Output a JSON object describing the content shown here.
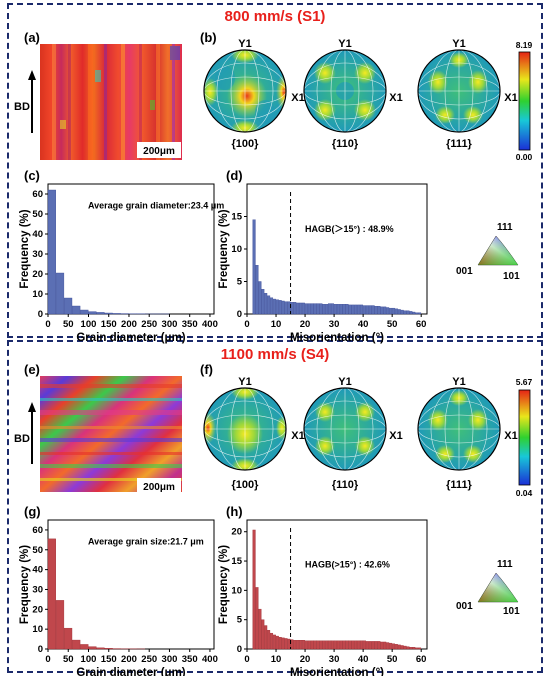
{
  "panels": [
    {
      "title": "800 mm/s (S1)",
      "ebsd_labels": {
        "panel": "(a)",
        "axis": "BD",
        "scale": "200μm"
      },
      "pole_figures": {
        "panel": "(b)",
        "y_label": "Y1",
        "x_label": "X1",
        "planes": [
          "{100}",
          "{110}",
          "{111}"
        ],
        "colorbar": {
          "max": "8.19",
          "min": "0.00"
        }
      },
      "triangle": {
        "top": "111",
        "left": "001",
        "right": "101"
      }
    },
    {
      "title": "1100 mm/s (S4)",
      "ebsd_labels": {
        "panel": "(e)",
        "axis": "BD",
        "scale": "200μm"
      },
      "pole_figures": {
        "panel": "(f)",
        "y_label": "Y1",
        "x_label": "X1",
        "planes": [
          "{100}",
          "{110}",
          "{111}"
        ],
        "colorbar": {
          "max": "5.67",
          "min": "0.04"
        }
      },
      "triangle": {
        "top": "111",
        "left": "001",
        "right": "101"
      }
    }
  ],
  "chart_data": [
    {
      "panel": "(c)",
      "type": "bar",
      "color": "#5b6fb4",
      "xlabel": "Grain diameter (μm)",
      "ylabel": "Frequency (%)",
      "annotation": "Average grain diameter:23.4 μm",
      "xlim": [
        0,
        410
      ],
      "ylim": [
        0,
        65
      ],
      "xticks": [
        0,
        50,
        100,
        150,
        200,
        250,
        300,
        350,
        400
      ],
      "yticks": [
        0,
        10,
        20,
        30,
        40,
        50,
        60
      ],
      "bin_width": 20,
      "x": [
        10,
        30,
        50,
        70,
        90,
        110,
        130,
        150,
        170,
        190,
        210,
        230,
        250,
        270,
        290
      ],
      "values": [
        62,
        20.5,
        8,
        4,
        2,
        1.2,
        0.8,
        0.5,
        0.3,
        0.2,
        0.1,
        0.1,
        0.05,
        0.05,
        0.05
      ]
    },
    {
      "panel": "(d)",
      "type": "bar",
      "color": "#5b6fb4",
      "xlabel": "Misorientation (°)",
      "ylabel": "Frequency (%)",
      "annotation": "HAGB(＞15°) : 48.9%",
      "xlim": [
        0,
        62
      ],
      "ylim": [
        0,
        20
      ],
      "xticks": [
        0,
        10,
        20,
        30,
        40,
        50,
        60
      ],
      "yticks": [
        0,
        5,
        10,
        15
      ],
      "threshold": 15,
      "bin_width": 1,
      "x": [
        2.5,
        3.5,
        4.5,
        5.5,
        6.5,
        7.5,
        8.5,
        9.5,
        10.5,
        11.5,
        12.5,
        13.5,
        14.5,
        15.5,
        16.5,
        17.5,
        18.5,
        19.5,
        20.5,
        21.5,
        22.5,
        23.5,
        24.5,
        25.5,
        26.5,
        27.5,
        28.5,
        29.5,
        30.5,
        31.5,
        32.5,
        33.5,
        34.5,
        35.5,
        36.5,
        37.5,
        38.5,
        39.5,
        40.5,
        41.5,
        42.5,
        43.5,
        44.5,
        45.5,
        46.5,
        47.5,
        48.5,
        49.5,
        50.5,
        51.5,
        52.5,
        53.5,
        54.5,
        55.5,
        56.5,
        57.5,
        58.5,
        59.5
      ],
      "values": [
        14.5,
        7.5,
        5.0,
        3.8,
        3.2,
        2.8,
        2.5,
        2.3,
        2.2,
        2.1,
        2.0,
        1.9,
        1.9,
        1.8,
        1.8,
        1.7,
        1.7,
        1.7,
        1.6,
        1.6,
        1.6,
        1.6,
        1.6,
        1.6,
        1.5,
        1.5,
        1.6,
        1.6,
        1.5,
        1.5,
        1.5,
        1.5,
        1.5,
        1.4,
        1.4,
        1.4,
        1.4,
        1.4,
        1.3,
        1.3,
        1.3,
        1.3,
        1.2,
        1.2,
        1.1,
        1.1,
        1.0,
        0.9,
        0.9,
        0.8,
        0.7,
        0.6,
        0.5,
        0.5,
        0.4,
        0.3,
        0.2,
        0.2
      ]
    },
    {
      "panel": "(g)",
      "type": "bar",
      "color": "#c0474c",
      "xlabel": "Grain diameter (μm)",
      "ylabel": "Frequency (%)",
      "annotation": "Average grain size:21.7 μm",
      "xlim": [
        0,
        410
      ],
      "ylim": [
        0,
        65
      ],
      "xticks": [
        0,
        50,
        100,
        150,
        200,
        250,
        300,
        350,
        400
      ],
      "yticks": [
        0,
        10,
        20,
        30,
        40,
        50,
        60
      ],
      "bin_width": 20,
      "x": [
        10,
        30,
        50,
        70,
        90,
        110,
        130,
        150,
        170,
        190,
        210,
        230
      ],
      "values": [
        55.5,
        24.5,
        10.5,
        4.5,
        2.3,
        1.2,
        0.6,
        0.4,
        0.2,
        0.1,
        0.1,
        0.05
      ]
    },
    {
      "panel": "(h)",
      "type": "bar",
      "color": "#c0474c",
      "xlabel": "Misorientation (°)",
      "ylabel": "Frequency (%)",
      "annotation": "HAGB(>15°) : 42.6%",
      "xlim": [
        0,
        62
      ],
      "ylim": [
        0,
        22
      ],
      "xticks": [
        0,
        10,
        20,
        30,
        40,
        50,
        60
      ],
      "yticks": [
        0,
        5,
        10,
        15,
        20
      ],
      "threshold": 15,
      "bin_width": 1,
      "x": [
        2.5,
        3.5,
        4.5,
        5.5,
        6.5,
        7.5,
        8.5,
        9.5,
        10.5,
        11.5,
        12.5,
        13.5,
        14.5,
        15.5,
        16.5,
        17.5,
        18.5,
        19.5,
        20.5,
        21.5,
        22.5,
        23.5,
        24.5,
        25.5,
        26.5,
        27.5,
        28.5,
        29.5,
        30.5,
        31.5,
        32.5,
        33.5,
        34.5,
        35.5,
        36.5,
        37.5,
        38.5,
        39.5,
        40.5,
        41.5,
        42.5,
        43.5,
        44.5,
        45.5,
        46.5,
        47.5,
        48.5,
        49.5,
        50.5,
        51.5,
        52.5,
        53.5,
        54.5,
        55.5,
        56.5,
        57.5,
        58.5,
        59.5
      ],
      "values": [
        20.3,
        10.5,
        6.8,
        5.0,
        4.0,
        3.2,
        2.7,
        2.4,
        2.2,
        2.0,
        1.9,
        1.8,
        1.7,
        1.6,
        1.5,
        1.5,
        1.5,
        1.5,
        1.4,
        1.4,
        1.4,
        1.4,
        1.4,
        1.4,
        1.4,
        1.4,
        1.4,
        1.4,
        1.4,
        1.4,
        1.4,
        1.4,
        1.4,
        1.4,
        1.4,
        1.4,
        1.4,
        1.4,
        1.4,
        1.3,
        1.3,
        1.3,
        1.3,
        1.3,
        1.2,
        1.2,
        1.1,
        1.0,
        0.9,
        0.8,
        0.7,
        0.6,
        0.5,
        0.4,
        0.3,
        0.3,
        0.2,
        0.2
      ]
    }
  ]
}
